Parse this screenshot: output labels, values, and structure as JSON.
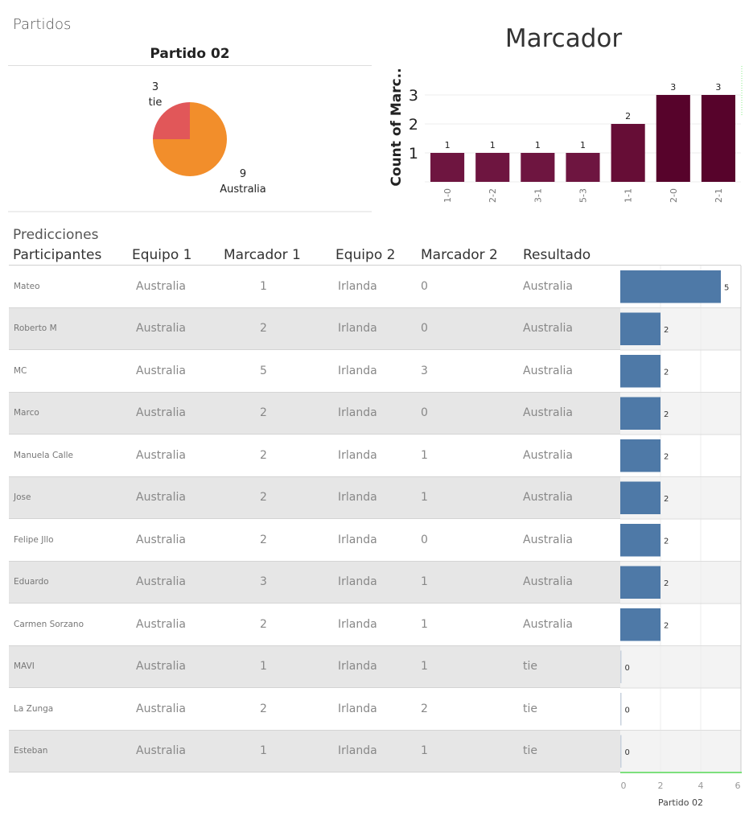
{
  "dashboard": {
    "section_partidos": "Partidos",
    "section_predicciones": "Predicciones"
  },
  "chart_data": [
    {
      "type": "pie",
      "title": "Partido 02",
      "slices": [
        {
          "label": "Australia",
          "value": 9,
          "color": "#F28E2B"
        },
        {
          "label": "tie",
          "value": 3,
          "color": "#E15759"
        }
      ]
    },
    {
      "type": "bar",
      "title": "Marcador",
      "ylabel": "Count of Marc..",
      "categories": [
        "1-0",
        "2-2",
        "3-1",
        "5-3",
        "1-1",
        "2-0",
        "2-1"
      ],
      "values": [
        1,
        1,
        1,
        1,
        2,
        3,
        3
      ],
      "yticks": [
        1,
        2,
        3
      ],
      "ylim": [
        0,
        4
      ],
      "colors": [
        "#6E1540",
        "#6E1540",
        "#6E1540",
        "#6E1540",
        "#660D36",
        "#57032B",
        "#57032B"
      ],
      "grid": true
    },
    {
      "type": "bar",
      "orientation": "horizontal",
      "xlabel": "Partido 02",
      "xticks": [
        0,
        2,
        4,
        6
      ],
      "xlim": [
        0,
        6
      ],
      "color": "#4E79A7",
      "categories": [
        "Mateo",
        "Roberto M",
        "MC",
        "Marco",
        "Manuela Calle",
        "Jose",
        "Felipe Jllo",
        "Eduardo",
        "Carmen Sorzano",
        "MAVI",
        "La Zunga",
        "Esteban"
      ],
      "values": [
        5,
        2,
        2,
        2,
        2,
        2,
        2,
        2,
        2,
        0,
        0,
        0
      ]
    }
  ],
  "table": {
    "headers": [
      "Participantes",
      "Equipo 1",
      "Marcador 1",
      "Equipo 2",
      "Marcador 2",
      "Resultado"
    ],
    "rows": [
      {
        "participante": "Mateo",
        "equipo1": "Australia",
        "marcador1": "1",
        "equipo2": "Irlanda",
        "marcador2": "0",
        "resultado": "Australia"
      },
      {
        "participante": "Roberto M",
        "equipo1": "Australia",
        "marcador1": "2",
        "equipo2": "Irlanda",
        "marcador2": "0",
        "resultado": "Australia"
      },
      {
        "participante": "MC",
        "equipo1": "Australia",
        "marcador1": "5",
        "equipo2": "Irlanda",
        "marcador2": "3",
        "resultado": "Australia"
      },
      {
        "participante": "Marco",
        "equipo1": "Australia",
        "marcador1": "2",
        "equipo2": "Irlanda",
        "marcador2": "0",
        "resultado": "Australia"
      },
      {
        "participante": "Manuela Calle",
        "equipo1": "Australia",
        "marcador1": "2",
        "equipo2": "Irlanda",
        "marcador2": "1",
        "resultado": "Australia"
      },
      {
        "participante": "Jose",
        "equipo1": "Australia",
        "marcador1": "2",
        "equipo2": "Irlanda",
        "marcador2": "1",
        "resultado": "Australia"
      },
      {
        "participante": "Felipe Jllo",
        "equipo1": "Australia",
        "marcador1": "2",
        "equipo2": "Irlanda",
        "marcador2": "0",
        "resultado": "Australia"
      },
      {
        "participante": "Eduardo",
        "equipo1": "Australia",
        "marcador1": "3",
        "equipo2": "Irlanda",
        "marcador2": "1",
        "resultado": "Australia"
      },
      {
        "participante": "Carmen Sorzano",
        "equipo1": "Australia",
        "marcador1": "2",
        "equipo2": "Irlanda",
        "marcador2": "1",
        "resultado": "Australia"
      },
      {
        "participante": "MAVI",
        "equipo1": "Australia",
        "marcador1": "1",
        "equipo2": "Irlanda",
        "marcador2": "1",
        "resultado": "tie"
      },
      {
        "participante": "La Zunga",
        "equipo1": "Australia",
        "marcador1": "2",
        "equipo2": "Irlanda",
        "marcador2": "2",
        "resultado": "tie"
      },
      {
        "participante": "Esteban",
        "equipo1": "Australia",
        "marcador1": "1",
        "equipo2": "Irlanda",
        "marcador2": "1",
        "resultado": "tie"
      }
    ]
  }
}
